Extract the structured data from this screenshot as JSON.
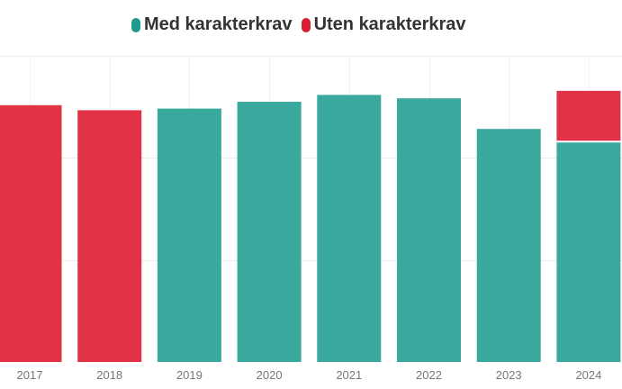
{
  "chart_data": {
    "type": "bar",
    "stacked": true,
    "categories": [
      "2017",
      "2018",
      "2019",
      "2020",
      "2021",
      "2022",
      "2023",
      "2024"
    ],
    "series": [
      {
        "name": "Med karakterkrav",
        "color": "#3aaa9f",
        "values": [
          0,
          0,
          74.5,
          76.5,
          78.5,
          77.5,
          68.5,
          64.8
        ]
      },
      {
        "name": "Uten karakterkrav",
        "color": "#e13246",
        "values": [
          75.5,
          74,
          0,
          0,
          0,
          0,
          0,
          14.9
        ]
      }
    ],
    "ylim": [
      0,
      90
    ],
    "grid": true,
    "legend_position": "top-left"
  }
}
